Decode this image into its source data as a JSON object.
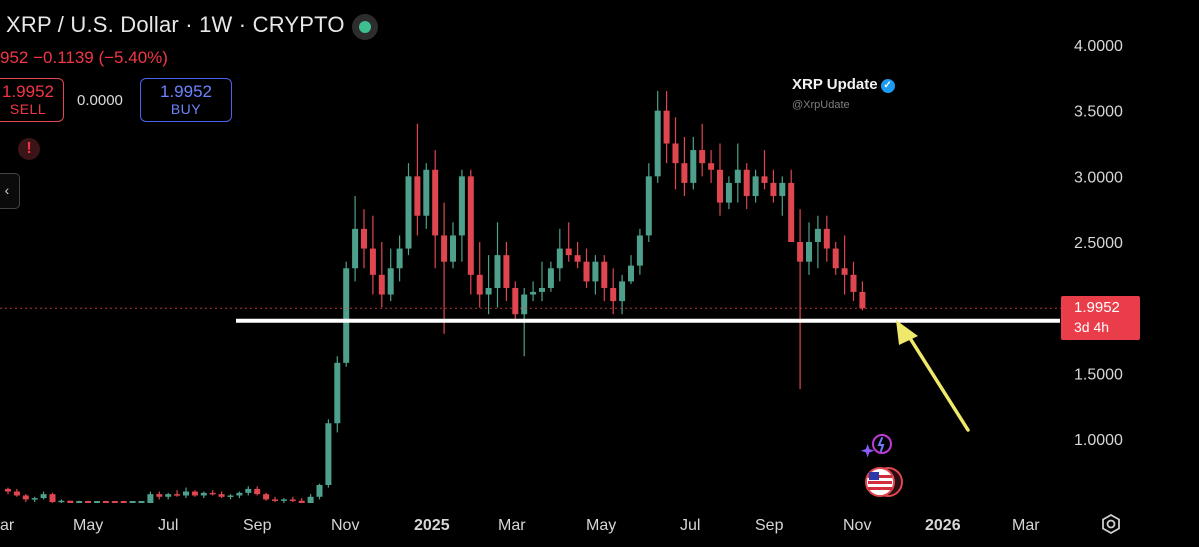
{
  "header": {
    "title": "XRP / U.S. Dollar · 1W · CRYPTO",
    "change": "952  −0.1139 (−5.40%)",
    "sell_price": "1.9952",
    "sell_label": "SELL",
    "spread": "0.0000",
    "buy_price": "1.9952",
    "buy_label": "BUY",
    "alert_symbol": "!",
    "collapse_symbol": "‹"
  },
  "watermark": {
    "name": "XRP Update",
    "handle": "@XrpUdate",
    "verified": "✓"
  },
  "price_tag": {
    "price": "1.9952",
    "countdown": "3d 4h",
    "color": "#ea3d4a"
  },
  "colors": {
    "up": "#4ea08c",
    "down": "#e0464f",
    "annotation_line": "#ffffff",
    "arrow": "#f0e86a"
  },
  "icons": [
    "status-dot-icon",
    "alert-icon",
    "collapse-icon",
    "verified-icon",
    "ai-sparkle-icon",
    "us-flag-icon",
    "settings-gear-icon"
  ],
  "chart_data": {
    "type": "candlestick",
    "interval": "1W",
    "symbol": "XRP / U.S. Dollar",
    "y_ticks": [
      1.0,
      1.5,
      2.0,
      2.5,
      3.0,
      3.5,
      4.0
    ],
    "y_tick_labels": [
      "1.0000",
      "1.5000",
      "2.0000",
      "2.5000",
      "3.0000",
      "3.5000",
      "4.0000"
    ],
    "ylim": [
      0.55,
      4.2
    ],
    "x_labels": [
      "ar",
      "May",
      "Jul",
      "Sep",
      "Nov",
      "2025",
      "Mar",
      "May",
      "Jul",
      "Sep",
      "Nov",
      "2026",
      "Mar"
    ],
    "last_price": 1.9952,
    "support_line": 1.9,
    "candles": [
      [
        0.62,
        0.63,
        0.58,
        0.6
      ],
      [
        0.6,
        0.62,
        0.56,
        0.57
      ],
      [
        0.57,
        0.58,
        0.52,
        0.54
      ],
      [
        0.54,
        0.56,
        0.52,
        0.55
      ],
      [
        0.55,
        0.6,
        0.54,
        0.58
      ],
      [
        0.58,
        0.59,
        0.5,
        0.52
      ],
      [
        0.52,
        0.54,
        0.49,
        0.53
      ],
      [
        0.53,
        0.53,
        0.49,
        0.51
      ],
      [
        0.51,
        0.53,
        0.49,
        0.52
      ],
      [
        0.52,
        0.53,
        0.48,
        0.49
      ],
      [
        0.49,
        0.52,
        0.47,
        0.51
      ],
      [
        0.51,
        0.53,
        0.48,
        0.49
      ],
      [
        0.49,
        0.51,
        0.45,
        0.48
      ],
      [
        0.48,
        0.5,
        0.44,
        0.47
      ],
      [
        0.47,
        0.5,
        0.44,
        0.48
      ],
      [
        0.48,
        0.52,
        0.47,
        0.5
      ],
      [
        0.5,
        0.6,
        0.48,
        0.58
      ],
      [
        0.58,
        0.6,
        0.54,
        0.56
      ],
      [
        0.56,
        0.59,
        0.54,
        0.58
      ],
      [
        0.58,
        0.61,
        0.56,
        0.57
      ],
      [
        0.57,
        0.63,
        0.55,
        0.6
      ],
      [
        0.6,
        0.61,
        0.56,
        0.57
      ],
      [
        0.57,
        0.6,
        0.55,
        0.59
      ],
      [
        0.59,
        0.61,
        0.57,
        0.58
      ],
      [
        0.58,
        0.6,
        0.55,
        0.56
      ],
      [
        0.56,
        0.58,
        0.54,
        0.57
      ],
      [
        0.57,
        0.6,
        0.55,
        0.59
      ],
      [
        0.59,
        0.64,
        0.57,
        0.62
      ],
      [
        0.62,
        0.64,
        0.57,
        0.58
      ],
      [
        0.58,
        0.59,
        0.53,
        0.54
      ],
      [
        0.54,
        0.56,
        0.52,
        0.53
      ],
      [
        0.53,
        0.55,
        0.51,
        0.54
      ],
      [
        0.54,
        0.56,
        0.52,
        0.53
      ],
      [
        0.53,
        0.55,
        0.5,
        0.51
      ],
      [
        0.51,
        0.58,
        0.5,
        0.56
      ],
      [
        0.56,
        0.66,
        0.54,
        0.65
      ],
      [
        0.65,
        1.15,
        0.63,
        1.12
      ],
      [
        1.12,
        1.63,
        1.05,
        1.58
      ],
      [
        1.58,
        2.35,
        1.55,
        2.3
      ],
      [
        2.3,
        2.85,
        2.2,
        2.6
      ],
      [
        2.6,
        2.75,
        2.3,
        2.45
      ],
      [
        2.45,
        2.7,
        2.1,
        2.25
      ],
      [
        2.25,
        2.5,
        2.0,
        2.1
      ],
      [
        2.1,
        2.45,
        2.05,
        2.3
      ],
      [
        2.3,
        2.55,
        2.2,
        2.45
      ],
      [
        2.45,
        3.1,
        2.4,
        3.0
      ],
      [
        3.0,
        3.4,
        2.55,
        2.7
      ],
      [
        2.7,
        3.1,
        2.6,
        3.05
      ],
      [
        3.05,
        3.2,
        2.3,
        2.55
      ],
      [
        2.55,
        2.8,
        1.8,
        2.35
      ],
      [
        2.35,
        2.65,
        2.3,
        2.55
      ],
      [
        2.55,
        3.05,
        2.35,
        3.0
      ],
      [
        3.0,
        3.05,
        2.1,
        2.25
      ],
      [
        2.25,
        2.5,
        2.0,
        2.1
      ],
      [
        2.1,
        2.4,
        1.95,
        2.15
      ],
      [
        2.15,
        2.65,
        2.0,
        2.4
      ],
      [
        2.4,
        2.5,
        2.05,
        2.15
      ],
      [
        2.15,
        2.2,
        1.9,
        1.95
      ],
      [
        1.95,
        2.15,
        1.63,
        2.1
      ],
      [
        2.1,
        2.2,
        2.05,
        2.12
      ],
      [
        2.12,
        2.35,
        2.05,
        2.15
      ],
      [
        2.15,
        2.35,
        2.12,
        2.3
      ],
      [
        2.3,
        2.6,
        2.2,
        2.45
      ],
      [
        2.45,
        2.65,
        2.35,
        2.4
      ],
      [
        2.4,
        2.5,
        2.3,
        2.35
      ],
      [
        2.35,
        2.45,
        2.15,
        2.2
      ],
      [
        2.2,
        2.4,
        2.1,
        2.35
      ],
      [
        2.35,
        2.4,
        2.05,
        2.15
      ],
      [
        2.15,
        2.3,
        1.95,
        2.05
      ],
      [
        2.05,
        2.25,
        1.95,
        2.2
      ],
      [
        2.2,
        2.4,
        2.18,
        2.32
      ],
      [
        2.32,
        2.6,
        2.25,
        2.55
      ],
      [
        2.55,
        3.1,
        2.5,
        3.0
      ],
      [
        3.0,
        3.65,
        2.95,
        3.5
      ],
      [
        3.5,
        3.65,
        3.1,
        3.25
      ],
      [
        3.25,
        3.45,
        2.9,
        3.1
      ],
      [
        3.1,
        3.3,
        2.85,
        2.95
      ],
      [
        2.95,
        3.3,
        2.9,
        3.2
      ],
      [
        3.2,
        3.4,
        3.0,
        3.1
      ],
      [
        3.1,
        3.2,
        2.95,
        3.05
      ],
      [
        3.05,
        3.25,
        2.7,
        2.8
      ],
      [
        2.8,
        3.0,
        2.75,
        2.95
      ],
      [
        2.95,
        3.25,
        2.8,
        3.05
      ],
      [
        3.05,
        3.1,
        2.75,
        2.85
      ],
      [
        2.85,
        3.05,
        2.8,
        3.0
      ],
      [
        3.0,
        3.2,
        2.9,
        2.95
      ],
      [
        2.95,
        3.05,
        2.8,
        2.85
      ],
      [
        2.85,
        3.0,
        2.7,
        2.95
      ],
      [
        2.95,
        3.05,
        2.5,
        2.5
      ],
      [
        2.5,
        2.75,
        1.38,
        2.35
      ],
      [
        2.35,
        2.65,
        2.25,
        2.5
      ],
      [
        2.5,
        2.7,
        2.3,
        2.6
      ],
      [
        2.6,
        2.7,
        2.35,
        2.45
      ],
      [
        2.45,
        2.5,
        2.25,
        2.3
      ],
      [
        2.3,
        2.55,
        2.1,
        2.25
      ],
      [
        2.25,
        2.35,
        2.05,
        2.12
      ],
      [
        2.12,
        2.2,
        1.98,
        1.9952
      ]
    ]
  }
}
